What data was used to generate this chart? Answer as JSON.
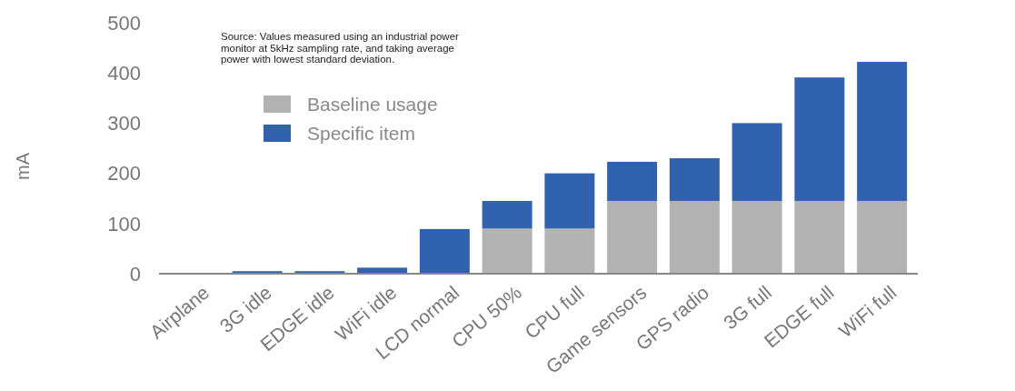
{
  "chart_data": {
    "type": "bar",
    "stacked": true,
    "ylabel": "mA",
    "categories": [
      "Airplane",
      "3G idle",
      "EDGE idle",
      "WiFi idle",
      "LCD normal",
      "CPU 50%",
      "CPU full",
      "Game sensors",
      "GPS radio",
      "3G full",
      "EDGE full",
      "WiFi full"
    ],
    "series": [
      {
        "name": "Baseline usage",
        "color": "#b3b2b2",
        "values": [
          0,
          0,
          0,
          0,
          0,
          90,
          90,
          145,
          145,
          145,
          145,
          145
        ]
      },
      {
        "name": "Specific item",
        "color": "#3162ad",
        "values": [
          null,
          5,
          5,
          12,
          89,
          55,
          110,
          78,
          85,
          155,
          246,
          277
        ]
      }
    ],
    "ylim": [
      0,
      500
    ],
    "yticks": [
      0,
      100,
      200,
      300,
      400,
      500
    ],
    "grid": false,
    "legend": "top left",
    "annotations": [
      "Source: Values measured using an industrial power monitor at 5kHz sampling rate, and taking average power with lowest standard deviation."
    ]
  }
}
